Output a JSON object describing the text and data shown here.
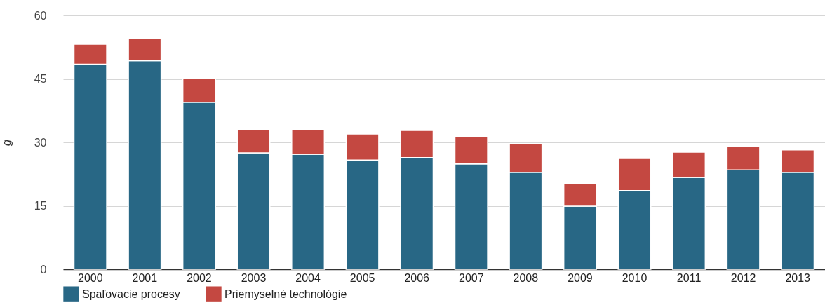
{
  "chart_data": {
    "type": "bar",
    "stacked": true,
    "ylabel": "g",
    "categories": [
      "2000",
      "2001",
      "2002",
      "2003",
      "2004",
      "2005",
      "2006",
      "2007",
      "2008",
      "2009",
      "2010",
      "2011",
      "2012",
      "2013"
    ],
    "series": [
      {
        "name": "Spaľovacie procesy",
        "color": "#286785",
        "values": [
          48.5,
          49.3,
          39.5,
          27.5,
          27.2,
          25.8,
          26.4,
          24.9,
          22.9,
          14.9,
          18.6,
          21.7,
          23.5,
          22.9
        ]
      },
      {
        "name": "Priemyselné technológie",
        "color": "#c44841",
        "values": [
          4.7,
          5.3,
          5.6,
          5.6,
          5.9,
          6.2,
          6.4,
          6.5,
          6.8,
          5.3,
          7.6,
          6.0,
          5.5,
          5.3
        ]
      }
    ],
    "ylim": [
      0,
      60
    ],
    "yticks": [
      0,
      15,
      30,
      45,
      60
    ],
    "grid": "y",
    "legend": "bottom"
  }
}
